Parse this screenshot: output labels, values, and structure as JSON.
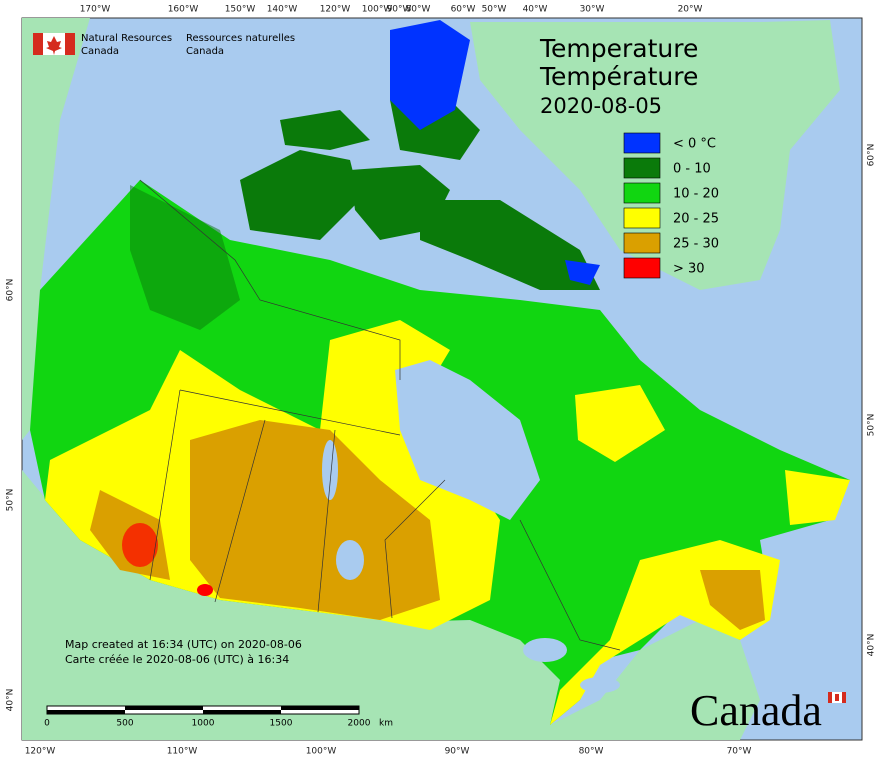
{
  "header": {
    "agency_en": [
      "Natural Resources",
      "Canada"
    ],
    "agency_fr": [
      "Ressources naturelles",
      "Canada"
    ]
  },
  "title": [
    "Temperature",
    "Température",
    "2020-08-05"
  ],
  "legend": {
    "items": [
      {
        "label": "< 0 °C",
        "color": "#0033ff"
      },
      {
        "label": "0 - 10",
        "color": "#0a7a0a"
      },
      {
        "label": "10 - 20",
        "color": "#11d611"
      },
      {
        "label": "20 - 25",
        "color": "#ffff00"
      },
      {
        "label": "25 - 30",
        "color": "#daa000"
      },
      {
        "label": "> 30",
        "color": "#ff0000"
      }
    ]
  },
  "graticule": {
    "top": [
      "170°W",
      "160°W",
      "150°W",
      "140°W",
      "120°W",
      "100°W",
      "90°W",
      "80°W",
      "60°W",
      "50°W",
      "40°W",
      "30°W",
      "20°W"
    ],
    "bottom": [
      "120°W",
      "110°W",
      "100°W",
      "90°W",
      "80°W",
      "70°W"
    ],
    "left": [
      "60°N",
      "50°N",
      "40°N"
    ],
    "right": [
      "60°N",
      "50°N",
      "40°N"
    ]
  },
  "footer": [
    "Map created at 16:34 (UTC) on 2020-08-06",
    "Carte créée le 2020-08-06 (UTC) à 16:34"
  ],
  "scale": {
    "labels": [
      "0",
      "500",
      "1000",
      "1500",
      "2000"
    ],
    "unit": "km"
  },
  "wordmark": "Canada"
}
